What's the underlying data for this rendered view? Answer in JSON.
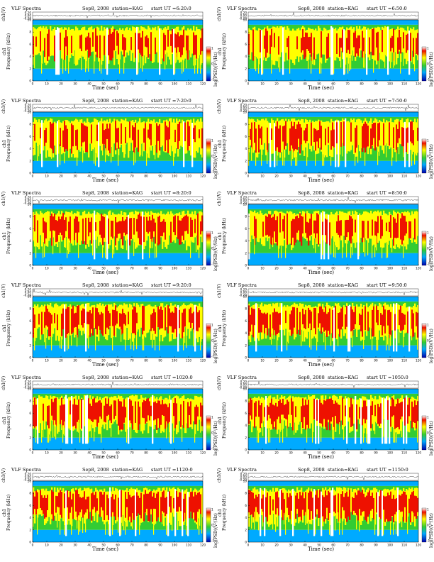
{
  "figure": {
    "header_title": "VLF Spectra",
    "date": "Sep8, 2008",
    "station": "station=KAG",
    "ch_label": "ch1(V)",
    "ylabel_top": "ch1",
    "ylabel_bottom": "Frequency (kHz)",
    "xlabel": "Time (sec)",
    "colorbar_label": "log(PSD)(V²/Hz)",
    "colors": {
      "low": "#00aaff",
      "mid": "#33cc33",
      "high": "#ffff00",
      "peak": "#ee1100",
      "white": "#ffffff",
      "background": "#ffffff"
    }
  },
  "panels": [
    {
      "start": "start  UT =6:20:0"
    },
    {
      "start": "start  UT =6:50:0"
    },
    {
      "start": "start  UT =7:20:0"
    },
    {
      "start": "start  UT =7:50:0"
    },
    {
      "start": "start  UT =8:20:0"
    },
    {
      "start": "start  UT =8:50:0"
    },
    {
      "start": "start  UT =9:20:0"
    },
    {
      "start": "start  UT =9:50:0"
    },
    {
      "start": "start  UT =1020:0"
    },
    {
      "start": "start  UT =1050:0"
    },
    {
      "start": "start  UT =1120:0"
    },
    {
      "start": "start  UT =1150:0"
    }
  ],
  "chart_data": {
    "type": "heatmap",
    "x": {
      "label": "Time (sec)",
      "range": [
        0,
        120
      ],
      "ticks": [
        0,
        10,
        20,
        30,
        40,
        50,
        60,
        70,
        80,
        90,
        100,
        110,
        120
      ]
    },
    "y": {
      "label": "Frequency (kHz)",
      "range": [
        0,
        10
      ],
      "ticks": [
        0,
        2,
        4,
        6,
        8,
        10
      ]
    },
    "waveform_y": {
      "label": "ch1(V)",
      "ticks": [
        "0.20",
        "0.00",
        "-0.20"
      ]
    },
    "colorbar": {
      "ticks": [
        "1",
        "0",
        "-1"
      ]
    }
  }
}
